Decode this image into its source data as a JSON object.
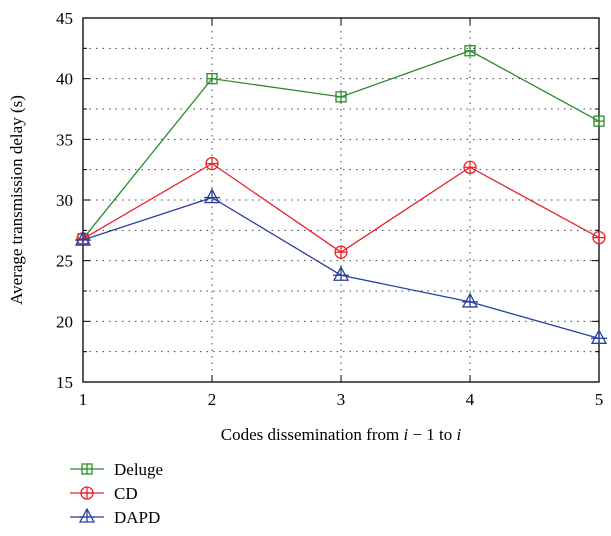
{
  "chart_data": {
    "type": "line",
    "x": [
      1,
      2,
      3,
      4,
      5
    ],
    "xlabel": "Codes dissemination from i − 1 to i",
    "xlabel_parts": [
      "Codes dissemination from ",
      "i",
      " − 1 to ",
      "i"
    ],
    "ylabel": "Average transmission delay (s)",
    "xlim": [
      1,
      5
    ],
    "ylim": [
      15,
      45
    ],
    "xticks": [
      1,
      2,
      3,
      4,
      5
    ],
    "yticks": [
      15,
      20,
      25,
      30,
      35,
      40,
      45
    ],
    "grid": true,
    "legend_position": "below",
    "series": [
      {
        "name": "Deluge",
        "color": "#2e8b2e",
        "marker": "square-plus",
        "values": [
          26.8,
          40.0,
          38.5,
          42.3,
          36.5
        ]
      },
      {
        "name": "CD",
        "color": "#e8232b",
        "marker": "circle-plus",
        "values": [
          26.8,
          33.0,
          25.7,
          32.7,
          26.9
        ]
      },
      {
        "name": "DAPD",
        "color": "#2a3f9f",
        "marker": "triangle-plus",
        "values": [
          26.7,
          30.2,
          23.8,
          21.6,
          18.6
        ]
      }
    ]
  }
}
